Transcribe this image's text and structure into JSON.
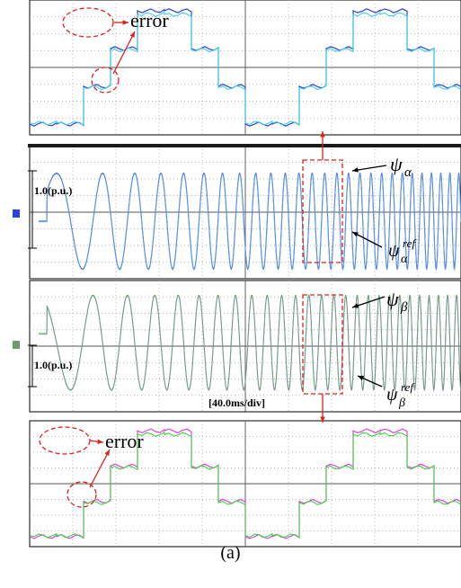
{
  "chart_data": [
    {
      "type": "line",
      "panel": "top zoom (alpha)",
      "annotation": "error",
      "series": [
        {
          "color": "#2a43d8",
          "values": [
            -2.4,
            -2.4,
            -0.8,
            0.8,
            2.4,
            2.4,
            0.8,
            -0.8,
            -2.4,
            -2.4,
            -0.8,
            0.8,
            2.4,
            2.4,
            0.8,
            -0.8
          ]
        },
        {
          "color": "#40d0e8",
          "values": [
            -2.3,
            -2.3,
            -0.8,
            0.8,
            2.3,
            2.3,
            0.8,
            -0.8,
            -2.3,
            -2.3,
            -0.8,
            0.8,
            2.3,
            2.3,
            0.8,
            -0.8
          ]
        }
      ],
      "grid": true
    },
    {
      "type": "line",
      "panel": "alpha flux",
      "scale_label": "1.0(p.u.)",
      "labels": {
        "main": "ψ",
        "main_sub": "α",
        "ref": "ψ",
        "ref_sub": "α",
        "ref_sup": "ref"
      },
      "envelope": {
        "start_frequency": 5,
        "end_frequency": 48,
        "amplitude": 1.0
      },
      "series": [
        {
          "color": "#2a43d8"
        },
        {
          "color": "#6fc8f0"
        }
      ],
      "grid": true
    },
    {
      "type": "line",
      "panel": "beta flux",
      "scale_label": "1.0(p.u.)",
      "time_label": "[40.0ms/div]",
      "labels": {
        "main": "ψ",
        "main_sub": "β",
        "ref": "ψ",
        "ref_sub": "β",
        "ref_sup": "ref"
      },
      "envelope": {
        "start_frequency": 5,
        "end_frequency": 48,
        "amplitude": 1.0
      },
      "series": [
        {
          "color": "#2ec42e"
        },
        {
          "color": "#b07ad8"
        }
      ],
      "grid": true
    },
    {
      "type": "line",
      "panel": "bottom zoom (beta)",
      "annotation": "error",
      "series": [
        {
          "color": "#e040e0",
          "values": [
            -2.4,
            -2.4,
            -0.8,
            0.8,
            2.4,
            2.4,
            0.8,
            -0.8,
            -2.4,
            -2.4,
            -0.8,
            0.8,
            2.4,
            2.4,
            0.8,
            -0.8
          ]
        },
        {
          "color": "#3fd23f",
          "values": [
            -2.3,
            -2.3,
            -0.8,
            0.8,
            2.3,
            2.3,
            0.8,
            -0.8,
            -2.3,
            -2.3,
            -0.8,
            0.8,
            2.3,
            2.3,
            0.8,
            -0.8
          ]
        }
      ],
      "grid": true
    }
  ],
  "caption": "(a)",
  "colors": {
    "annotation": "#e0201c",
    "background": "#ffffff",
    "grid": "#9a9a9a"
  }
}
